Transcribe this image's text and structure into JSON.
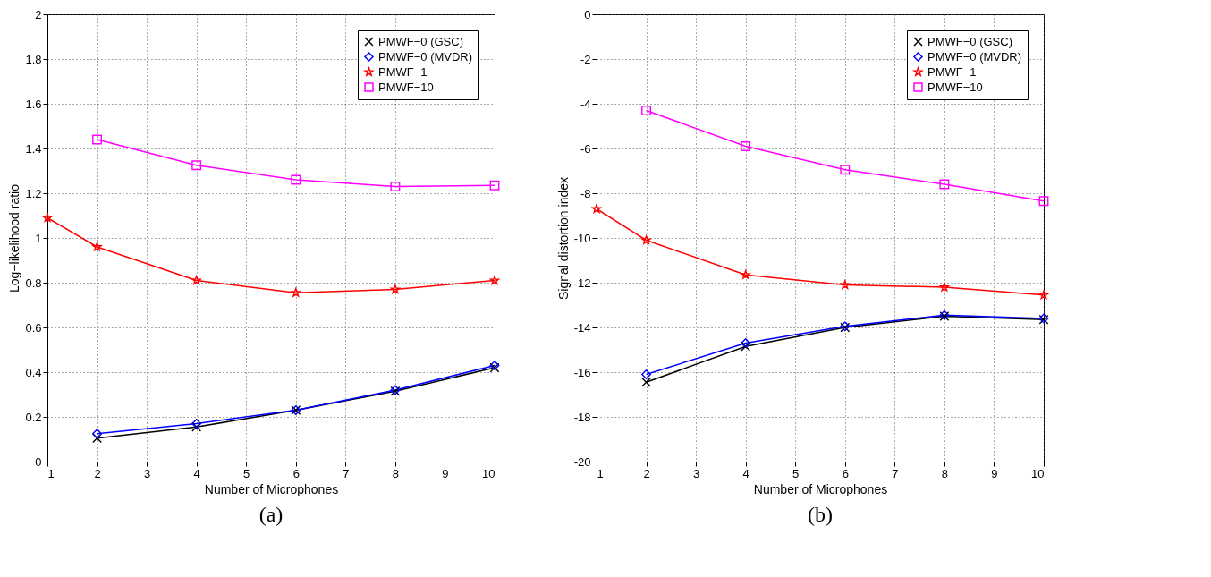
{
  "chart_data": [
    {
      "type": "line",
      "xlabel": "Number of Microphones",
      "ylabel": "Log−likelihood ratio",
      "xlim": [
        1,
        10
      ],
      "xticks": [
        1,
        2,
        3,
        4,
        5,
        6,
        7,
        8,
        9,
        10
      ],
      "ylim": [
        0,
        2
      ],
      "yticks": [
        0,
        0.2,
        0.4,
        0.6,
        0.8,
        1,
        1.2,
        1.4,
        1.6,
        1.8,
        2
      ],
      "grid": true,
      "legend": "top right",
      "line_style": "solid",
      "annotations": [
        "(a)"
      ],
      "series": [
        {
          "name": "PMWF−0 (GSC)",
          "color": "#000000",
          "marker": "cross",
          "x": [
            2,
            4,
            6,
            8,
            10
          ],
          "values": [
            0.105,
            0.155,
            0.23,
            0.315,
            0.42
          ]
        },
        {
          "name": "PMWF−0 (MVDR)",
          "color": "#0000ff",
          "marker": "diamond",
          "x": [
            2,
            4,
            6,
            8,
            10
          ],
          "values": [
            0.125,
            0.17,
            0.23,
            0.32,
            0.43
          ]
        },
        {
          "name": "PMWF−1",
          "color": "#ff0000",
          "marker": "star",
          "x": [
            1,
            2,
            4,
            6,
            8,
            10
          ],
          "values": [
            1.09,
            0.96,
            0.81,
            0.755,
            0.77,
            0.81
          ]
        },
        {
          "name": "PMWF−10",
          "color": "#ff00ff",
          "marker": "square",
          "x": [
            2,
            4,
            6,
            8,
            10
          ],
          "values": [
            1.44,
            1.325,
            1.26,
            1.23,
            1.235
          ]
        }
      ]
    },
    {
      "type": "line",
      "xlabel": "Number of Microphones",
      "ylabel": "Signal distortion index",
      "xlim": [
        1,
        10
      ],
      "xticks": [
        1,
        2,
        3,
        4,
        5,
        6,
        7,
        8,
        9,
        10
      ],
      "ylim": [
        -20,
        0
      ],
      "yticks": [
        -20,
        -18,
        -16,
        -14,
        -12,
        -10,
        -8,
        -6,
        -4,
        -2,
        0
      ],
      "grid": true,
      "legend": "top right",
      "line_style": "solid",
      "annotations": [
        "(b)"
      ],
      "series": [
        {
          "name": "PMWF−0 (GSC)",
          "color": "#000000",
          "marker": "cross",
          "x": [
            2,
            4,
            6,
            8,
            10
          ],
          "values": [
            -16.45,
            -14.85,
            -14.0,
            -13.5,
            -13.65
          ]
        },
        {
          "name": "PMWF−0 (MVDR)",
          "color": "#0000ff",
          "marker": "diamond",
          "x": [
            2,
            4,
            6,
            8,
            10
          ],
          "values": [
            -16.1,
            -14.7,
            -13.95,
            -13.45,
            -13.6
          ]
        },
        {
          "name": "PMWF−1",
          "color": "#ff0000",
          "marker": "star",
          "x": [
            1,
            2,
            4,
            6,
            8,
            10
          ],
          "values": [
            -8.7,
            -10.1,
            -11.65,
            -12.1,
            -12.2,
            -12.55
          ]
        },
        {
          "name": "PMWF−10",
          "color": "#ff00ff",
          "marker": "square",
          "x": [
            2,
            4,
            6,
            8,
            10
          ],
          "values": [
            -4.3,
            -5.9,
            -6.95,
            -7.6,
            -8.35
          ]
        }
      ]
    }
  ]
}
